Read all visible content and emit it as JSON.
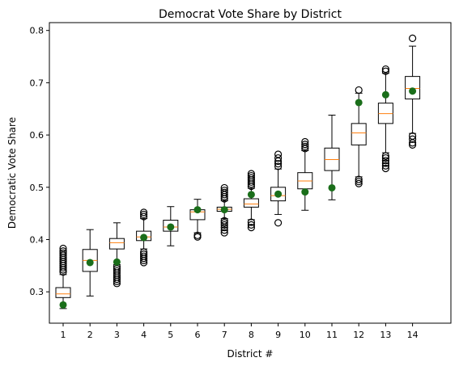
{
  "chart_data": {
    "type": "boxplot",
    "title": "Democrat Vote Share by District",
    "xlabel": "District #",
    "ylabel": "Democratic Vote Share",
    "ylim": [
      0.24,
      0.815
    ],
    "yticks": [
      0.3,
      0.4,
      0.5,
      0.6,
      0.7,
      0.8
    ],
    "categories": [
      "1",
      "2",
      "3",
      "4",
      "5",
      "6",
      "7",
      "8",
      "9",
      "10",
      "11",
      "12",
      "13",
      "14"
    ],
    "boxes": [
      {
        "q1": 0.289,
        "median": 0.296,
        "q3": 0.308,
        "whisker_low": 0.268,
        "whisker_high": 0.333,
        "fliers_high": [
          0.338,
          0.342,
          0.346,
          0.35,
          0.354,
          0.358,
          0.362,
          0.366,
          0.37,
          0.374,
          0.378,
          0.383
        ],
        "fliers_low": []
      },
      {
        "q1": 0.339,
        "median": 0.36,
        "q3": 0.381,
        "whisker_low": 0.292,
        "whisker_high": 0.419,
        "fliers_high": [],
        "fliers_low": []
      },
      {
        "q1": 0.382,
        "median": 0.394,
        "q3": 0.402,
        "whisker_low": 0.352,
        "whisker_high": 0.432,
        "fliers_high": [],
        "fliers_low": [
          0.316,
          0.32,
          0.324,
          0.328,
          0.332,
          0.336,
          0.34,
          0.344,
          0.348
        ]
      },
      {
        "q1": 0.398,
        "median": 0.405,
        "q3": 0.416,
        "whisker_low": 0.382,
        "whisker_high": 0.44,
        "fliers_high": [
          0.444,
          0.448,
          0.452
        ],
        "fliers_low": [
          0.356,
          0.36,
          0.364,
          0.368,
          0.372,
          0.376
        ]
      },
      {
        "q1": 0.416,
        "median": 0.424,
        "q3": 0.437,
        "whisker_low": 0.388,
        "whisker_high": 0.463,
        "fliers_high": [],
        "fliers_low": []
      },
      {
        "q1": 0.438,
        "median": 0.453,
        "q3": 0.457,
        "whisker_low": 0.413,
        "whisker_high": 0.477,
        "fliers_high": [],
        "fliers_low": [
          0.405,
          0.408
        ]
      },
      {
        "q1": 0.454,
        "median": 0.458,
        "q3": 0.462,
        "whisker_low": 0.44,
        "whisker_high": 0.474,
        "fliers_high": [
          0.478,
          0.482,
          0.486,
          0.49,
          0.494,
          0.499
        ],
        "fliers_low": [
          0.413,
          0.418,
          0.423,
          0.428,
          0.432,
          0.436
        ]
      },
      {
        "q1": 0.462,
        "median": 0.468,
        "q3": 0.478,
        "whisker_low": 0.438,
        "whisker_high": 0.498,
        "fliers_high": [
          0.502,
          0.506,
          0.51,
          0.514,
          0.518,
          0.522,
          0.526
        ],
        "fliers_low": [
          0.423,
          0.428,
          0.433
        ]
      },
      {
        "q1": 0.474,
        "median": 0.484,
        "q3": 0.5,
        "whisker_low": 0.448,
        "whisker_high": 0.535,
        "fliers_high": [
          0.54,
          0.545,
          0.55,
          0.556,
          0.563
        ],
        "fliers_low": [
          0.432
        ]
      },
      {
        "q1": 0.497,
        "median": 0.512,
        "q3": 0.528,
        "whisker_low": 0.456,
        "whisker_high": 0.57,
        "fliers_high": [
          0.574,
          0.578,
          0.582,
          0.587
        ],
        "fliers_low": []
      },
      {
        "q1": 0.532,
        "median": 0.553,
        "q3": 0.575,
        "whisker_low": 0.476,
        "whisker_high": 0.638,
        "fliers_high": [],
        "fliers_low": []
      },
      {
        "q1": 0.581,
        "median": 0.604,
        "q3": 0.622,
        "whisker_low": 0.52,
        "whisker_high": 0.68,
        "fliers_high": [
          0.686
        ],
        "fliers_low": [
          0.507,
          0.511,
          0.515
        ]
      },
      {
        "q1": 0.622,
        "median": 0.641,
        "q3": 0.661,
        "whisker_low": 0.566,
        "whisker_high": 0.718,
        "fliers_high": [
          0.722,
          0.726
        ],
        "fliers_low": [
          0.536,
          0.541,
          0.546,
          0.551,
          0.556,
          0.56
        ]
      },
      {
        "q1": 0.669,
        "median": 0.689,
        "q3": 0.712,
        "whisker_low": 0.603,
        "whisker_high": 0.77,
        "fliers_high": [
          0.785
        ],
        "fliers_low": [
          0.581,
          0.585,
          0.592,
          0.598
        ]
      }
    ],
    "actual": {
      "values": [
        0.275,
        0.356,
        0.357,
        0.404,
        0.424,
        0.457,
        0.457,
        0.486,
        0.487,
        0.491,
        0.499,
        0.662,
        0.677,
        0.684
      ],
      "color": "#1a6e1a"
    },
    "colors": {
      "median": "#ff7f0e",
      "box": "#000000",
      "flier": "#000000"
    }
  }
}
